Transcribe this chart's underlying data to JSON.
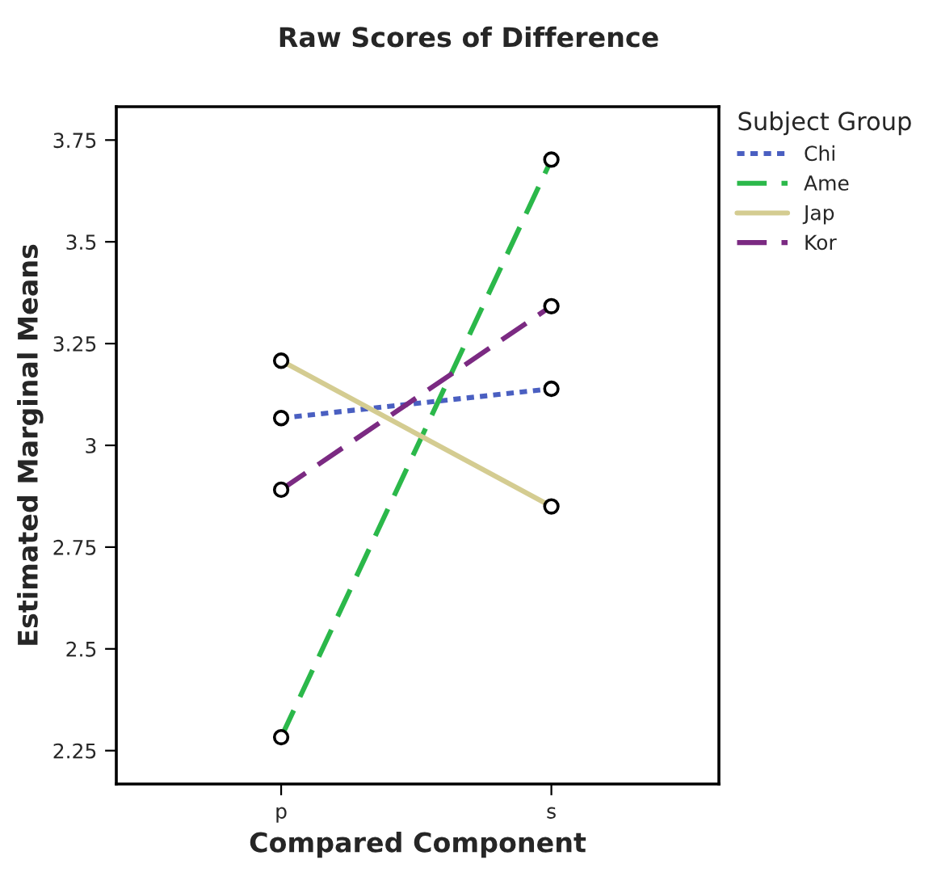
{
  "chart_data": {
    "type": "line",
    "title": "Raw Scores of Difference",
    "xlabel": "Compared Component",
    "ylabel": "Estimated Marginal Means",
    "legend_title": "Subject Group",
    "categories": [
      "p",
      "s"
    ],
    "series": [
      {
        "name": "Chi",
        "color": "#4a5fc1",
        "values": [
          3.067,
          3.139
        ],
        "line_style": "dotted"
      },
      {
        "name": "Ame",
        "color": "#2bb84a",
        "values": [
          2.283,
          3.702
        ],
        "line_style": "dashed"
      },
      {
        "name": "Jap",
        "color": "#d4cc91",
        "values": [
          3.208,
          2.85
        ],
        "line_style": "solid"
      },
      {
        "name": "Kor",
        "color": "#7b2a82",
        "values": [
          2.891,
          3.342
        ],
        "line_style": "dashed"
      }
    ],
    "ylim": [
      2.168,
      3.832
    ],
    "yticks": [
      2.25,
      2.5,
      2.75,
      3,
      3.25,
      3.5,
      3.75
    ],
    "marker": "circle",
    "grid": false,
    "legend": "top right"
  }
}
